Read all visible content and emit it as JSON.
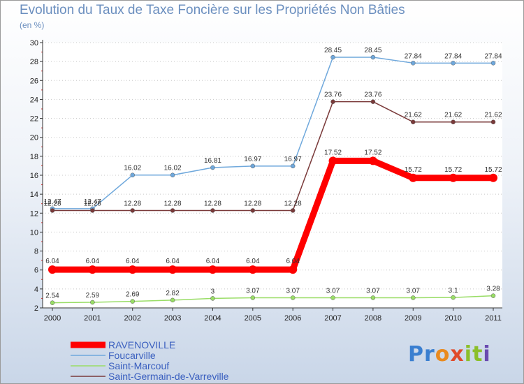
{
  "title": "Evolution du Taux de Taxe Foncière sur les Propriétés Non Bâties",
  "subtitle": "(en %)",
  "logo": {
    "part1": "Pr",
    "part2": "o",
    "part3": "x",
    "part4": "it",
    "part5": "i"
  },
  "chart_data": {
    "type": "line",
    "title": "Evolution du Taux de Taxe Foncière sur les Propriétés Non Bâties",
    "ylabel": "(en %)",
    "xlabel": "",
    "ylim": [
      2,
      30
    ],
    "yticks": [
      2,
      4,
      6,
      8,
      10,
      12,
      14,
      16,
      18,
      20,
      22,
      24,
      26,
      28,
      30
    ],
    "grid": "horizontal dotted",
    "legend": "bottom-left",
    "x": [
      "2000",
      "2001",
      "2002",
      "2003",
      "2004",
      "2005",
      "2006",
      "2007",
      "2008",
      "2009",
      "2010",
      "2011"
    ],
    "series": [
      {
        "name": "RAVENOVILLE",
        "color": "#ff0000",
        "emphasis": true,
        "values": [
          6.04,
          6.04,
          6.04,
          6.04,
          6.04,
          6.04,
          6.04,
          17.52,
          17.52,
          15.72,
          15.72,
          15.72
        ],
        "labels": [
          "6.04",
          "6.04",
          "6.04",
          "6.04",
          "6.04",
          "6.04",
          "6.04",
          "17.52",
          "17.52",
          "15.72",
          "15.72",
          "15.72"
        ]
      },
      {
        "name": "Foucarville",
        "color": "#6fa8dc",
        "values": [
          12.47,
          12.47,
          16.02,
          16.02,
          16.81,
          16.97,
          16.97,
          28.45,
          28.45,
          27.84,
          27.84,
          27.84
        ],
        "labels": [
          "12.47",
          "12.47",
          "16.02",
          "16.02",
          "16.81",
          "16.97",
          "16.97",
          "28.45",
          "28.45",
          "27.84",
          "27.84",
          "27.84"
        ]
      },
      {
        "name": "Saint-Marcouf",
        "color": "#99dd66",
        "values": [
          2.54,
          2.59,
          2.69,
          2.82,
          3,
          3.07,
          3.07,
          3.07,
          3.07,
          3.07,
          3.1,
          3.28
        ],
        "labels": [
          "2.54",
          "2.59",
          "2.69",
          "2.82",
          "3",
          "3.07",
          "3.07",
          "3.07",
          "3.07",
          "3.07",
          "3.1",
          "3.28"
        ]
      },
      {
        "name": "Saint-Germain-de-Varreville",
        "color": "#7a3a3a",
        "values": [
          12.28,
          12.28,
          12.28,
          12.28,
          12.28,
          12.28,
          12.28,
          23.76,
          23.76,
          21.62,
          21.62,
          21.62
        ],
        "labels": [
          "12.28",
          "12.28",
          "12.28",
          "12.28",
          "12.28",
          "12.28",
          "12.28",
          "23.76",
          "23.76",
          "21.62",
          "21.62",
          "21.62"
        ]
      }
    ]
  }
}
